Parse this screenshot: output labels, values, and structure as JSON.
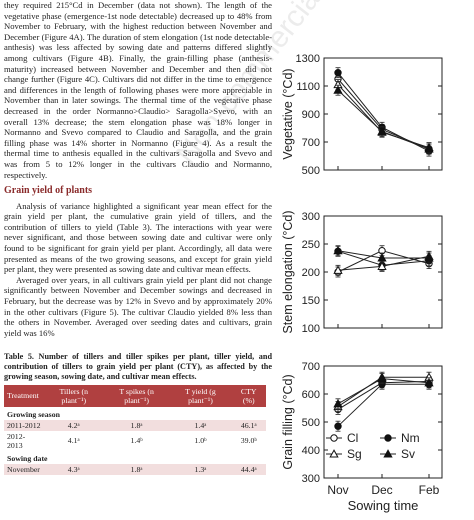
{
  "text": {
    "p1": "they required 215°Cd in December (data not shown). The length of the vegetative phase (emergence-1st node detectable) decreased up to 48% from November to February, with the highest reduction between November and December (Figure 4A). The duration of stem elongation (1st node detectable-anthesis) was less affected by sowing date and patterns differed slightly among cultivars (Figure 4B). Finally, the grain-filling phase (anthesis-maturity) increased between November and December and then did not change further (Figure 4C). Cultivars did not differ in the time to emergence and differences in the length of following phases were more appreciable in November than in later sowings. The thermal time of the vegetative phase decreased in the order Normanno>Claudio> Saragolla>Svevo, with an overall 13% decrease; the stem elongation phase was 18% longer in Normanno and Svevo compared to Claudio and Saragolla, and the grain filling phase was 14% shorter in Normanno (Figure 4). As a result the thermal time to anthesis equalled in the cultivars Saragolla and Svevo and was from 5 to 12% longer in the cultivars Claudio and Normanno, respectively.",
    "heading": "Grain yield of plants",
    "p2": "Analysis of variance highlighted a significant year mean effect for the grain yield per plant, the cumulative grain yield of tillers, and the contribution of tillers to yield (Table 3). The interactions with year were never significant, and those between sowing date and cultivar were only found to be significant for grain yield per plant. Accordingly, all data were presented as means of the two growing seasons, and except for grain yield per plant, they were presented as sowing date and cultivar mean effects.",
    "p3": "Averaged over years, in all cultivars grain yield per plant did not change significantly between November and December sowings and decreased in February, but the decrease was by 12% in Svevo and by approximately 20% in the other cultivars (Figure 5). The cultivar Claudio yielded 8% less than the others in November. Averaged over seeding dates and cultivars, grain yield was 16%",
    "table_caption": "Table 5. Number of tillers and tiller spikes per plant, tiller yield, and contribution of tillers to grain yield per plant (CTY), as affected by the growing season, sowing date, and cultivar mean effects."
  },
  "table5": {
    "headers": [
      "Treatment",
      "Tillers (n plant⁻¹)",
      "T spikes (n plant⁻¹)",
      "T yield (g plant⁻¹)",
      "CTY (%)"
    ],
    "groups": [
      {
        "label": "Growing season",
        "rows": [
          [
            "2011-2012",
            "4.2ᵃ",
            "1.8ᵃ",
            "1.4ᵃ",
            "46.1ᵃ"
          ],
          [
            "2012-2013",
            "4.1ᵃ",
            "1.4ᵇ",
            "1.0ᵇ",
            "39.0ᵇ"
          ]
        ]
      },
      {
        "label": "Sowing date",
        "rows": [
          [
            "November",
            "4.3ᵃ",
            "1.8ᵃ",
            "1.3ᵃ",
            "44.4ᵃ"
          ]
        ]
      }
    ]
  },
  "watermark": "Non-commercial use only",
  "figure": {
    "xlabel": "Sowing time",
    "legend": [
      {
        "code": "Cl",
        "marker": "open-circle"
      },
      {
        "code": "Nm",
        "marker": "filled-circle"
      },
      {
        "code": "Sg",
        "marker": "open-triangle"
      },
      {
        "code": "Sv",
        "marker": "filled-triangle"
      }
    ]
  },
  "chart_data": [
    {
      "type": "line",
      "x": [
        "Nov",
        "Dec",
        "Feb"
      ],
      "ylabel": "Vegetative (°Cd)",
      "ylim": [
        500,
        1300
      ],
      "yticks": [
        500,
        700,
        900,
        1100,
        1300
      ],
      "series": [
        {
          "name": "Cl",
          "values": [
            1150,
            790,
            650
          ]
        },
        {
          "name": "Nm",
          "values": [
            1195,
            805,
            635
          ]
        },
        {
          "name": "Sg",
          "values": [
            1110,
            770,
            660
          ]
        },
        {
          "name": "Sv",
          "values": [
            1070,
            775,
            650
          ]
        }
      ]
    },
    {
      "type": "line",
      "x": [
        "Nov",
        "Dec",
        "Feb"
      ],
      "ylabel": "Stem elongation (°Cd)",
      "ylim": [
        100,
        300
      ],
      "yticks": [
        100,
        150,
        200,
        250,
        300
      ],
      "series": [
        {
          "name": "Cl",
          "values": [
            200,
            238,
            215
          ]
        },
        {
          "name": "Nm",
          "values": [
            237,
            212,
            220
          ]
        },
        {
          "name": "Sg",
          "values": [
            203,
            210,
            228
          ]
        },
        {
          "name": "Sv",
          "values": [
            238,
            225,
            225
          ]
        }
      ]
    },
    {
      "type": "line",
      "x": [
        "Nov",
        "Dec",
        "Feb"
      ],
      "ylabel": "Grain filling (°Cd)",
      "ylim": [
        300,
        700
      ],
      "yticks": [
        300,
        400,
        500,
        600,
        700
      ],
      "series": [
        {
          "name": "Cl",
          "values": [
            545,
            640,
            645
          ]
        },
        {
          "name": "Nm",
          "values": [
            485,
            635,
            635
          ]
        },
        {
          "name": "Sg",
          "values": [
            555,
            660,
            660
          ]
        },
        {
          "name": "Sv",
          "values": [
            565,
            655,
            640
          ]
        }
      ]
    }
  ]
}
